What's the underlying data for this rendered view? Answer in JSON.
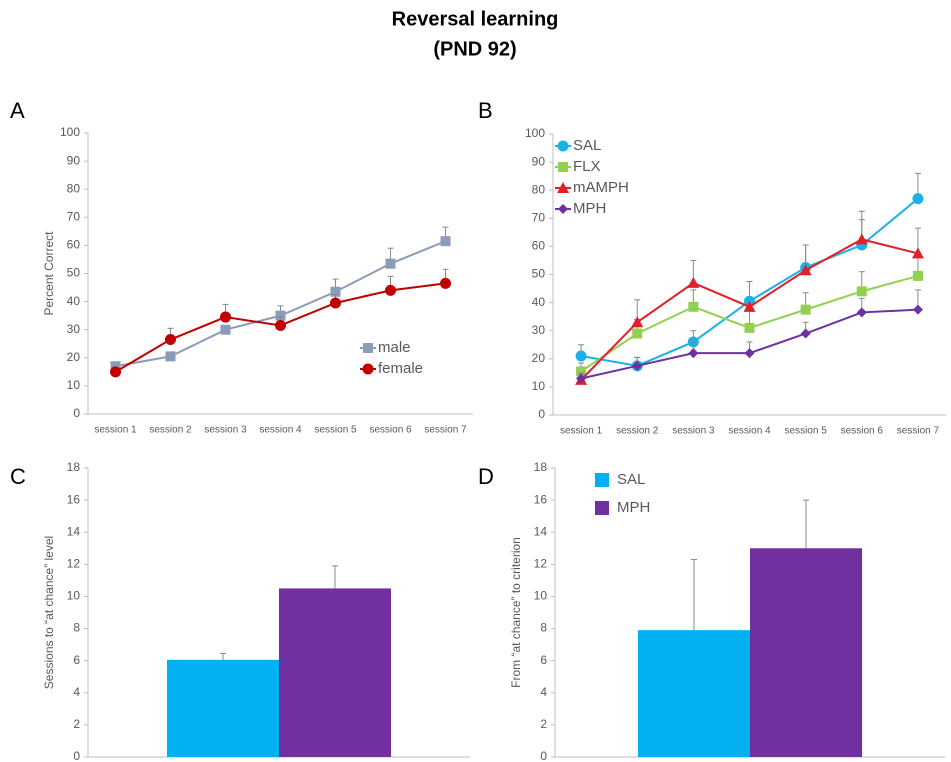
{
  "title": "Reversal learning",
  "subtitle": "(PND 92)",
  "chart_data": [
    {
      "panel": "A",
      "type": "line",
      "ylabel": "Percent Correct",
      "categories": [
        "session 1",
        "session 2",
        "session 3",
        "session 4",
        "session 5",
        "session 6",
        "session 7"
      ],
      "ylim": [
        0,
        100
      ],
      "yticks": [
        0,
        10,
        20,
        30,
        40,
        50,
        60,
        70,
        80,
        90,
        100
      ],
      "legend": "lower right",
      "series": [
        {
          "name": "male",
          "color": "#8a9cb8",
          "marker": "square",
          "values": [
            17,
            20.5,
            30,
            35,
            43.5,
            53.5,
            61.5
          ],
          "errors": [
            1,
            1,
            1.5,
            3.5,
            4.5,
            5.5,
            5
          ]
        },
        {
          "name": "female",
          "color": "#c00000",
          "marker": "circle",
          "values": [
            15,
            26.5,
            34.5,
            31.5,
            39.5,
            44,
            46.5
          ],
          "errors": [
            1,
            4,
            4.5,
            3,
            3,
            5,
            5
          ]
        }
      ]
    },
    {
      "panel": "B",
      "type": "line",
      "categories": [
        "session 1",
        "session 2",
        "session 3",
        "session 4",
        "session 5",
        "session 6",
        "session 7"
      ],
      "ylim": [
        0,
        100
      ],
      "yticks": [
        0,
        10,
        20,
        30,
        40,
        50,
        60,
        70,
        80,
        90,
        100
      ],
      "legend": "upper left",
      "series": [
        {
          "name": "SAL",
          "color": "#1ab0e8",
          "marker": "circle",
          "values": [
            21,
            17.5,
            26,
            40.5,
            52.5,
            60.5,
            77
          ],
          "errors": [
            4,
            3,
            4,
            7,
            8,
            9,
            9
          ]
        },
        {
          "name": "FLX",
          "color": "#92d050",
          "marker": "square",
          "values": [
            15.5,
            29,
            38.5,
            31,
            37.5,
            44,
            49.5
          ],
          "errors": [
            3,
            5,
            6,
            6,
            6,
            7,
            7
          ]
        },
        {
          "name": "mAMPH",
          "color": "#e0202a",
          "marker": "triangle",
          "values": [
            12.5,
            33,
            47,
            38.5,
            51.5,
            62.5,
            57.5
          ],
          "errors": [
            2,
            8,
            8,
            9,
            9,
            10,
            9
          ]
        },
        {
          "name": "MPH",
          "color": "#7030a0",
          "marker": "diamond",
          "values": [
            13,
            17.5,
            22,
            22,
            29,
            36.5,
            37.5
          ],
          "errors": [
            2,
            3,
            4,
            4,
            4,
            5,
            7
          ]
        }
      ]
    },
    {
      "panel": "C",
      "type": "bar",
      "ylabel": "Sessions to “at chance” level",
      "categories": [
        null,
        null
      ],
      "values": [
        6.05,
        10.5
      ],
      "errors": [
        0.4,
        1.4
      ],
      "colors": [
        "#00b0f0",
        "#7030a0"
      ],
      "ylim": [
        0,
        18
      ],
      "yticks": [
        0,
        2,
        4,
        6,
        8,
        10,
        12,
        14,
        16,
        18
      ]
    },
    {
      "panel": "D",
      "type": "bar",
      "ylabel": "From “at chance” to criterion",
      "categories": [
        null
      ],
      "ylim": [
        0,
        18
      ],
      "yticks": [
        0,
        2,
        4,
        6,
        8,
        10,
        12,
        14,
        16,
        18
      ],
      "legend": "upper left",
      "series": [
        {
          "name": "SAL",
          "color": "#00b0f0",
          "values": [
            7.9
          ],
          "errors": [
            4.4
          ]
        },
        {
          "name": "MPH",
          "color": "#7030a0",
          "values": [
            13
          ],
          "errors": [
            3
          ]
        }
      ]
    }
  ]
}
